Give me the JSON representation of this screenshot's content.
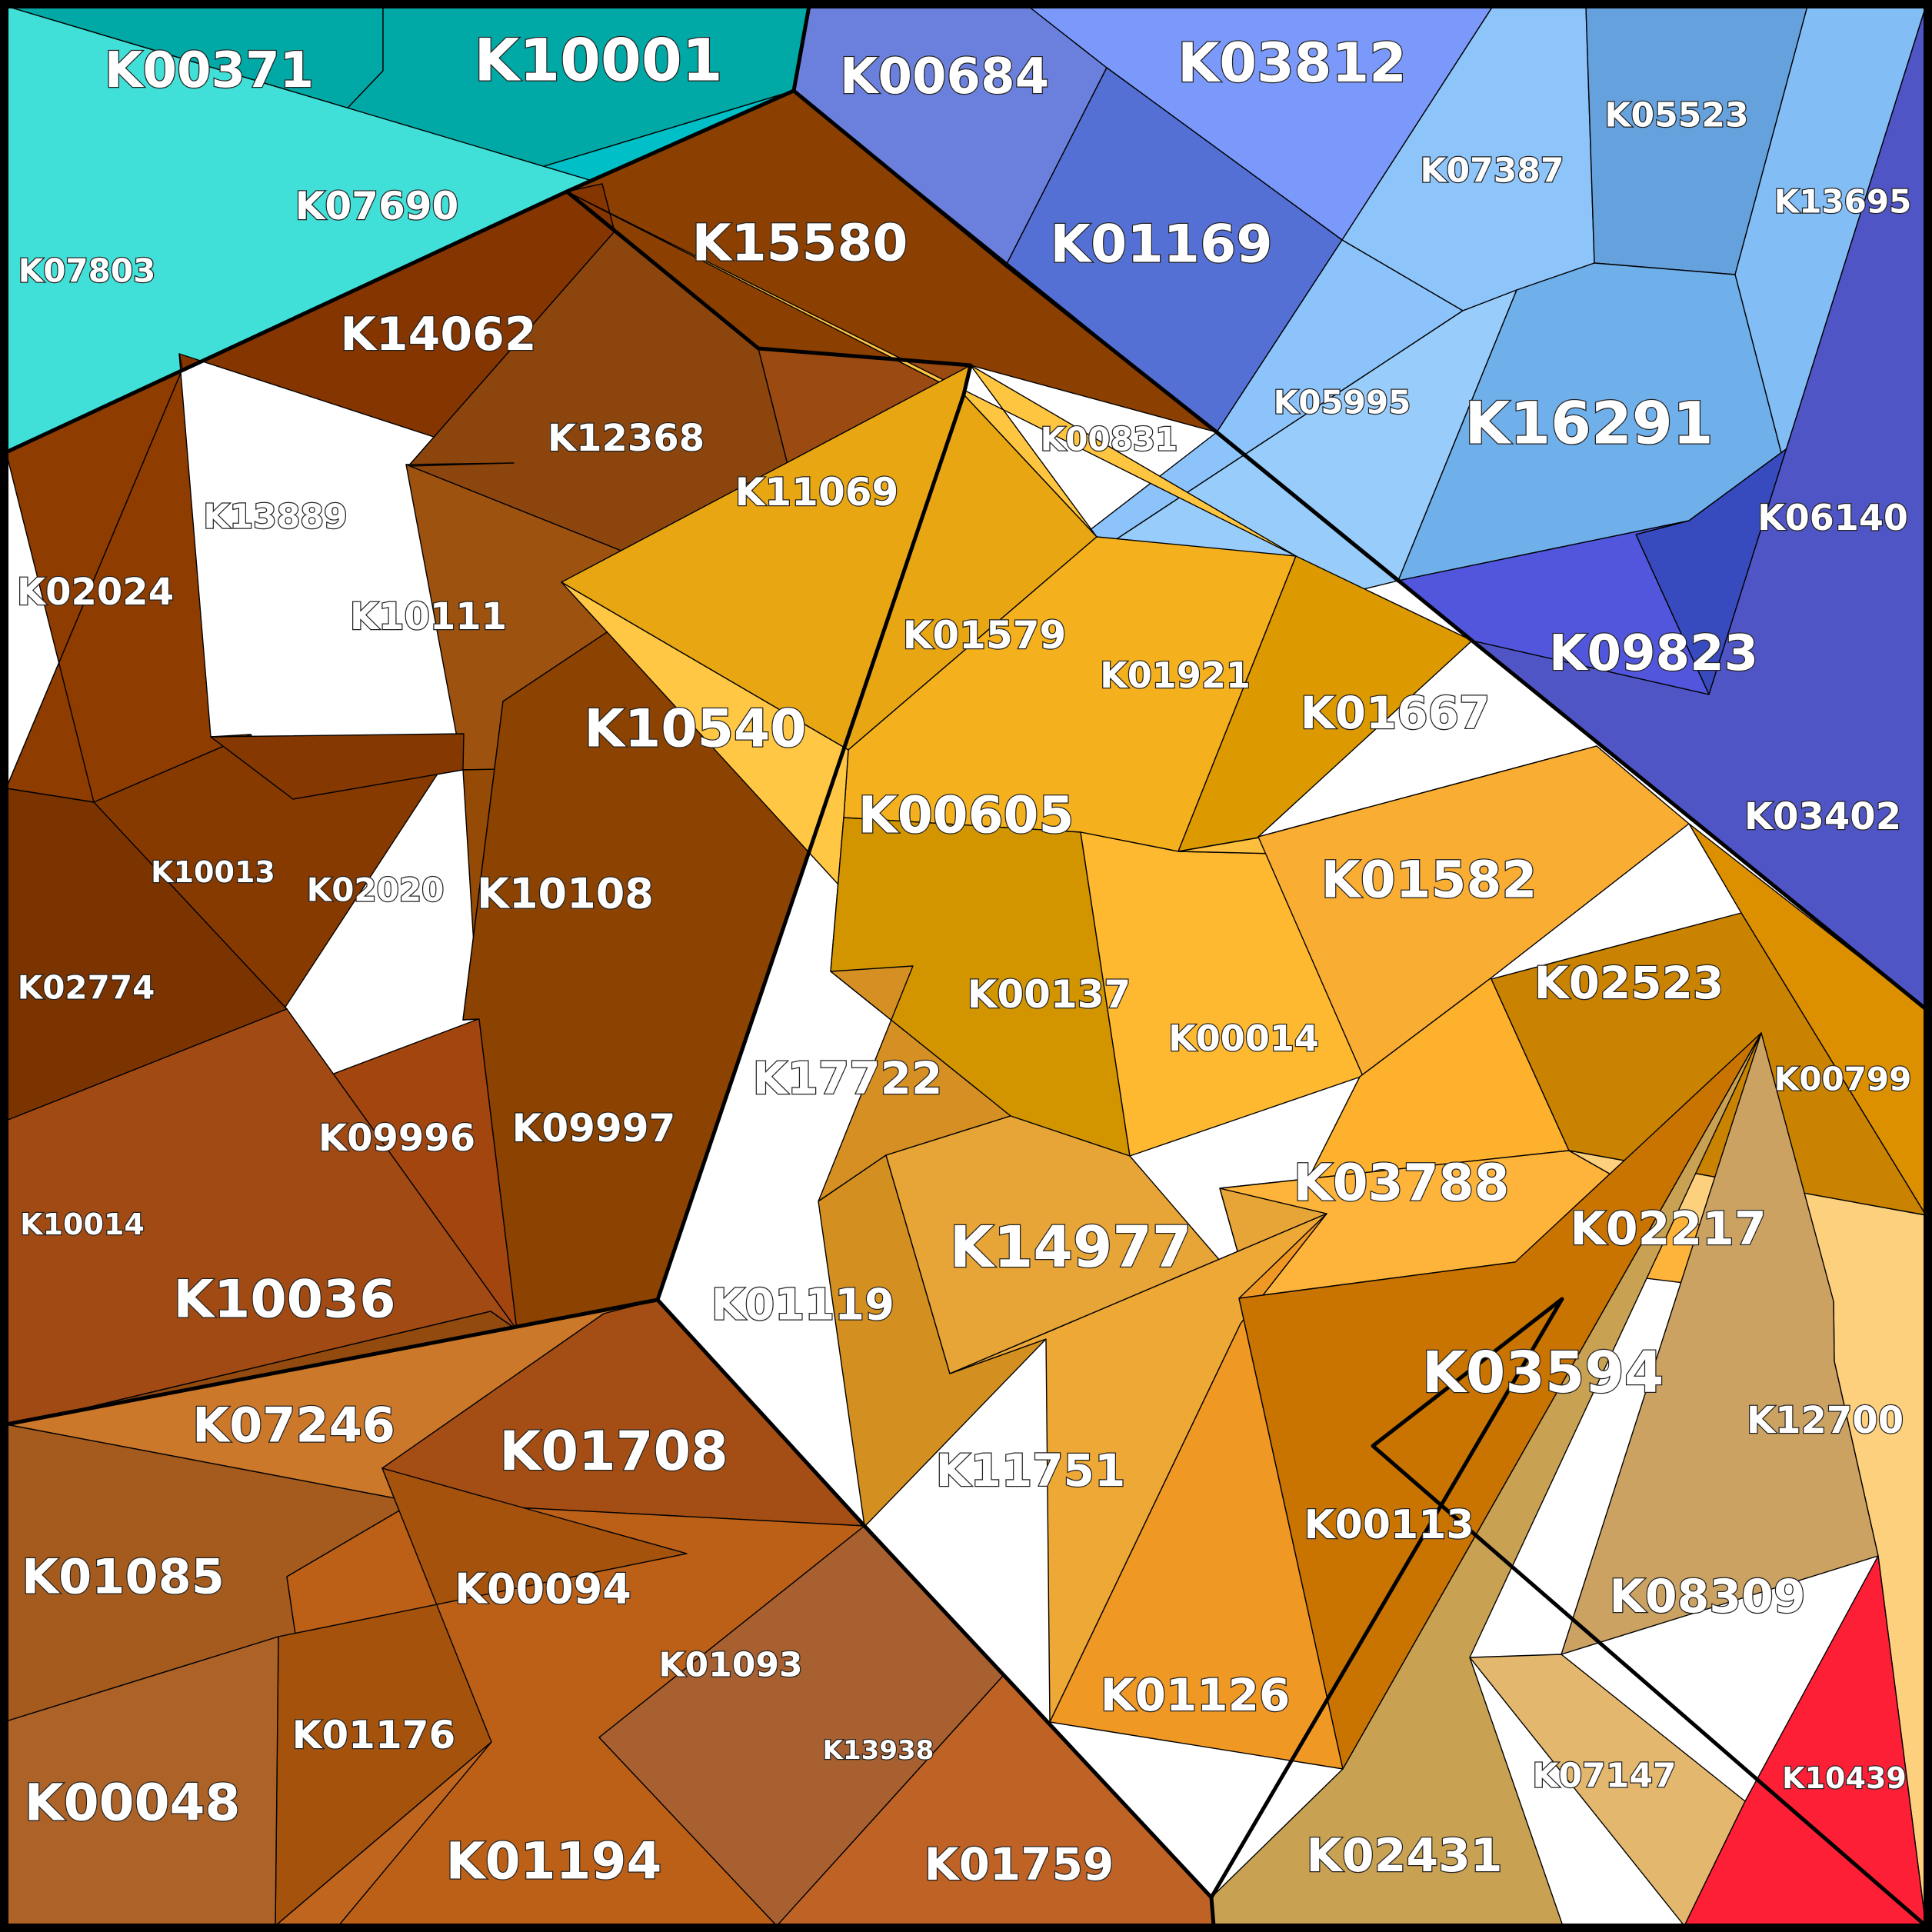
{
  "cells": [
    {
      "id": "K00371",
      "group": "teal",
      "color": "#00a9a5"
    },
    {
      "id": "K10001",
      "group": "teal",
      "color": "#00a9a5"
    },
    {
      "id": "K07690",
      "group": "teal",
      "color": "#00bfc6"
    },
    {
      "id": "K07803",
      "group": "teal",
      "color": "#40e0d8"
    },
    {
      "id": "K00684",
      "group": "blue",
      "color": "#6b80dc"
    },
    {
      "id": "K03812",
      "group": "blue",
      "color": "#7a99fb"
    },
    {
      "id": "K01169",
      "group": "blue",
      "color": "#5470d4"
    },
    {
      "id": "K07387",
      "group": "blue",
      "color": "#8dc5fb"
    },
    {
      "id": "K05523",
      "group": "blue",
      "color": "#65a2dd"
    },
    {
      "id": "K13695",
      "group": "blue",
      "color": "#83bdf6"
    },
    {
      "id": "K05995",
      "group": "blue",
      "color": "#8cc3fb"
    },
    {
      "id": "K16291",
      "group": "blue",
      "color": "#98cdfb"
    },
    {
      "id": "K16291b",
      "group": "blue",
      "color": "#6fafea"
    },
    {
      "id": "K06140",
      "group": "blue",
      "color": "#384bbe"
    },
    {
      "id": "K09823",
      "group": "blue",
      "color": "#5156dc"
    },
    {
      "id": "K03402",
      "group": "blue",
      "color": "#5055c6"
    },
    {
      "id": "K15580",
      "group": "brown",
      "color": "#8b3f00"
    },
    {
      "id": "K14062",
      "group": "brown",
      "color": "#843500"
    },
    {
      "id": "K12368",
      "group": "brown",
      "color": "#8c460d"
    },
    {
      "id": "K11069",
      "group": "brown",
      "color": "#9b4a12"
    },
    {
      "id": "K13889",
      "group": "brown",
      "color": "#8e3c00"
    },
    {
      "id": "K02024",
      "group": "brown",
      "color": "#8e3c00"
    },
    {
      "id": "K10111",
      "group": "brown",
      "color": "#9a470e"
    },
    {
      "id": "K10540",
      "group": "brown",
      "color": "#9d520f"
    },
    {
      "id": "K10013",
      "group": "brown",
      "color": "#873a00"
    },
    {
      "id": "K02020",
      "group": "brown",
      "color": "#853800"
    },
    {
      "id": "K10108",
      "group": "brown",
      "color": "#954a06"
    },
    {
      "id": "K02774",
      "group": "brown",
      "color": "#7b3400"
    },
    {
      "id": "K09996",
      "group": "brown",
      "color": "#a3450e"
    },
    {
      "id": "K09997",
      "group": "brown",
      "color": "#8c4200"
    },
    {
      "id": "K10014",
      "group": "brown",
      "color": "#a14a14"
    },
    {
      "id": "K10036",
      "group": "brown",
      "color": "#934a0e"
    },
    {
      "id": "K07246",
      "group": "brown",
      "color": "#cb782a"
    },
    {
      "id": "K01708",
      "group": "brown",
      "color": "#a44e15"
    },
    {
      "id": "K01085",
      "group": "brown",
      "color": "#a45b1d"
    },
    {
      "id": "K00094",
      "group": "brown",
      "color": "#d2722a"
    },
    {
      "id": "K01093",
      "group": "brown",
      "color": "#bc6018"
    },
    {
      "id": "K01176",
      "group": "brown",
      "color": "#a4520c"
    },
    {
      "id": "K00048",
      "group": "brown",
      "color": "#ad6228"
    },
    {
      "id": "K01194",
      "group": "brown",
      "color": "#c0651e"
    },
    {
      "id": "K13938",
      "group": "brown",
      "color": "#a86030"
    },
    {
      "id": "K01759",
      "group": "brown",
      "color": "#bf6226"
    },
    {
      "id": "K00831",
      "group": "orange",
      "color": "#fec540"
    },
    {
      "id": "K01579",
      "group": "orange",
      "color": "#e8a712"
    },
    {
      "id": "K01921",
      "group": "orange",
      "color": "#f5b11d"
    },
    {
      "id": "K01667",
      "group": "orange",
      "color": "#dc9a00"
    },
    {
      "id": "K00605",
      "group": "orange",
      "color": "#ffc743"
    },
    {
      "id": "K00137",
      "group": "orange",
      "color": "#d29500"
    },
    {
      "id": "K00014",
      "group": "orange",
      "color": "#feb930"
    },
    {
      "id": "K01582",
      "group": "orange",
      "color": "#fdbf3e"
    },
    {
      "id": "K02523",
      "group": "orange",
      "color": "#f9ad33"
    },
    {
      "id": "K00799",
      "group": "orange",
      "color": "#dc9000"
    },
    {
      "id": "K17722",
      "group": "orange",
      "color": "#d68f22"
    },
    {
      "id": "K03788",
      "group": "orange",
      "color": "#fdb12c"
    },
    {
      "id": "K02217",
      "group": "orange",
      "color": "#c98300"
    },
    {
      "id": "K01119",
      "group": "orange",
      "color": "#d39020"
    },
    {
      "id": "K14977",
      "group": "orange",
      "color": "#e6a536"
    },
    {
      "id": "K03594",
      "group": "orange",
      "color": "#feb43a"
    },
    {
      "id": "K12700",
      "group": "orange",
      "color": "#fdd07e"
    },
    {
      "id": "K11751",
      "group": "orange",
      "color": "#eea835"
    },
    {
      "id": "K01126",
      "group": "orange",
      "color": "#f09824"
    },
    {
      "id": "K00113",
      "group": "orange",
      "color": "#c97400"
    },
    {
      "id": "K08309",
      "group": "tan",
      "color": "#cba262"
    },
    {
      "id": "K07147",
      "group": "tan",
      "color": "#e3b86e"
    },
    {
      "id": "K02431",
      "group": "tan",
      "color": "#c9a152"
    },
    {
      "id": "K10439",
      "group": "red",
      "color": "#fd1f35"
    }
  ],
  "labels": [
    "K00371",
    "K10001",
    "K07690",
    "K07803",
    "K00684",
    "K03812",
    "K01169",
    "K07387",
    "K05523",
    "K13695",
    "K05995",
    "K16291",
    "K06140",
    "K09823",
    "K03402",
    "K15580",
    "K14062",
    "K12368",
    "K11069",
    "K13889",
    "K02024",
    "K10111",
    "K10540",
    "K10013",
    "K02020",
    "K10108",
    "K02774",
    "K09996",
    "K09997",
    "K10014",
    "K10036",
    "K07246",
    "K01708",
    "K01085",
    "K00094",
    "K01093",
    "K01176",
    "K00048",
    "K01194",
    "K13938",
    "K01759",
    "K00831",
    "K01579",
    "K01921",
    "K01667",
    "K00605",
    "K00137",
    "K00014",
    "K01582",
    "K02523",
    "K00799",
    "K17722",
    "K03788",
    "K02217",
    "K01119",
    "K14977",
    "K03594",
    "K12700",
    "K11751",
    "K01126",
    "K00113",
    "K08309",
    "K07147",
    "K02431",
    "K10439"
  ]
}
